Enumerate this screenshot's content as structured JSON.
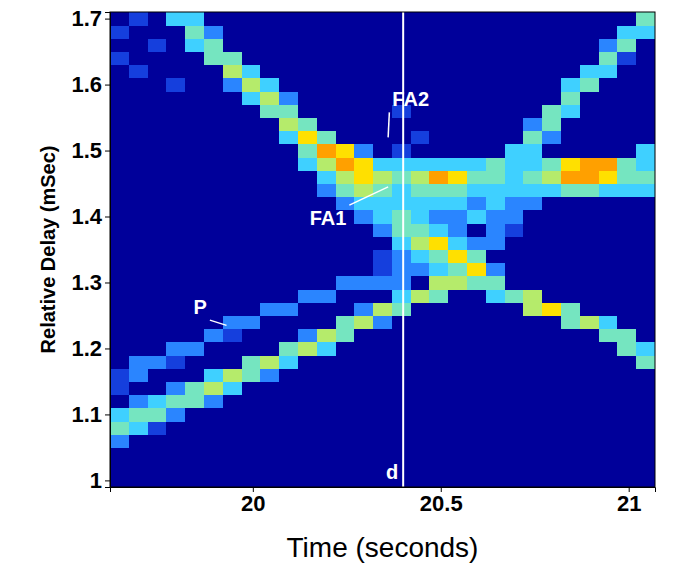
{
  "chart_data": {
    "type": "heatmap",
    "x_label": "Time (seconds)",
    "y_label": "Relative Delay (mSec)",
    "xlim": [
      19.62,
      21.07
    ],
    "ylim": [
      0.99,
      1.71
    ],
    "xticks": [
      20,
      20.5,
      21
    ],
    "yticks": [
      1,
      1.1,
      1.2,
      1.3,
      1.4,
      1.5,
      1.6,
      1.7
    ],
    "zlim": [
      0,
      9
    ],
    "x": [
      19.645,
      19.695,
      19.745,
      19.795,
      19.845,
      19.895,
      19.945,
      19.995,
      20.045,
      20.095,
      20.145,
      20.195,
      20.245,
      20.295,
      20.345,
      20.395,
      20.445,
      20.495,
      20.545,
      20.595,
      20.645,
      20.695,
      20.745,
      20.795,
      20.845,
      20.895,
      20.945,
      20.995,
      21.045
    ],
    "y": [
      1.0,
      1.02,
      1.04,
      1.06,
      1.08,
      1.1,
      1.12,
      1.14,
      1.16,
      1.18,
      1.2,
      1.22,
      1.24,
      1.26,
      1.28,
      1.3,
      1.32,
      1.34,
      1.36,
      1.38,
      1.4,
      1.42,
      1.44,
      1.46,
      1.48,
      1.5,
      1.52,
      1.54,
      1.56,
      1.58,
      1.6,
      1.62,
      1.64,
      1.66,
      1.68,
      1.7
    ],
    "z": [
      [
        0,
        0,
        0,
        0,
        0,
        0,
        0,
        0,
        0,
        0,
        0,
        0,
        0,
        0,
        0,
        0,
        0,
        0,
        0,
        0,
        0,
        0,
        0,
        0,
        0,
        0,
        0,
        0,
        0
      ],
      [
        0,
        0,
        0,
        0,
        0,
        0,
        0,
        0,
        0,
        0,
        0,
        0,
        0,
        0,
        0,
        0,
        0,
        0,
        0,
        0,
        0,
        0,
        0,
        0,
        0,
        0,
        0,
        0,
        0
      ],
      [
        0,
        0,
        0,
        0,
        0,
        0,
        0,
        0,
        0,
        0,
        0,
        0,
        0,
        0,
        0,
        0,
        0,
        0,
        0,
        0,
        0,
        0,
        0,
        0,
        0,
        0,
        0,
        0,
        0
      ],
      [
        2,
        0,
        0,
        0,
        0,
        0,
        0,
        0,
        0,
        0,
        0,
        0,
        0,
        0,
        0,
        0,
        0,
        0,
        0,
        0,
        0,
        0,
        0,
        0,
        0,
        0,
        0,
        0,
        0
      ],
      [
        4,
        3,
        1,
        0,
        0,
        0,
        0,
        0,
        0,
        0,
        0,
        0,
        0,
        0,
        0,
        0,
        0,
        0,
        0,
        0,
        0,
        0,
        0,
        0,
        0,
        0,
        0,
        0,
        0
      ],
      [
        3,
        4,
        4,
        2,
        0,
        0,
        0,
        0,
        0,
        0,
        0,
        0,
        0,
        0,
        0,
        0,
        0,
        0,
        0,
        0,
        0,
        0,
        0,
        0,
        0,
        0,
        0,
        0,
        0
      ],
      [
        0,
        2,
        3,
        4,
        4,
        2,
        0,
        0,
        0,
        0,
        0,
        0,
        0,
        0,
        0,
        0,
        0,
        0,
        0,
        0,
        0,
        0,
        0,
        0,
        0,
        0,
        0,
        0,
        0
      ],
      [
        1,
        0,
        0,
        2,
        4,
        5,
        3,
        0,
        0,
        0,
        0,
        0,
        0,
        0,
        0,
        0,
        0,
        0,
        0,
        0,
        0,
        0,
        0,
        0,
        0,
        0,
        0,
        0,
        0
      ],
      [
        1,
        2,
        0,
        0,
        0,
        3,
        5,
        4,
        2,
        0,
        0,
        0,
        0,
        0,
        0,
        0,
        0,
        0,
        0,
        0,
        0,
        0,
        0,
        0,
        0,
        0,
        0,
        0,
        0
      ],
      [
        0,
        2,
        2,
        1,
        0,
        0,
        0,
        4,
        5,
        3,
        0,
        0,
        0,
        0,
        0,
        0,
        0,
        0,
        0,
        0,
        0,
        0,
        0,
        0,
        0,
        0,
        0,
        0,
        4
      ],
      [
        0,
        0,
        0,
        2,
        2,
        0,
        0,
        0,
        0,
        4,
        5,
        3,
        0,
        0,
        0,
        0,
        0,
        0,
        0,
        0,
        0,
        0,
        0,
        0,
        0,
        0,
        0,
        4,
        3
      ],
      [
        0,
        0,
        0,
        0,
        0,
        2,
        1,
        0,
        0,
        0,
        2,
        5,
        4,
        0,
        0,
        0,
        0,
        0,
        0,
        0,
        0,
        0,
        0,
        0,
        0,
        0,
        4,
        4,
        0
      ],
      [
        0,
        0,
        0,
        0,
        0,
        0,
        2,
        2,
        0,
        0,
        0,
        0,
        4,
        5,
        2,
        0,
        0,
        0,
        0,
        0,
        0,
        0,
        0,
        0,
        4,
        5,
        3,
        0,
        0
      ],
      [
        0,
        0,
        0,
        0,
        0,
        0,
        0,
        0,
        2,
        2,
        0,
        0,
        0,
        2,
        5,
        4,
        0,
        0,
        0,
        0,
        0,
        0,
        5,
        6,
        4,
        0,
        0,
        0,
        0
      ],
      [
        0,
        0,
        0,
        0,
        0,
        0,
        0,
        0,
        0,
        0,
        2,
        2,
        0,
        0,
        0,
        3,
        5,
        4,
        0,
        0,
        3,
        4,
        5,
        0,
        0,
        0,
        0,
        0,
        0
      ],
      [
        0,
        0,
        0,
        0,
        0,
        0,
        0,
        0,
        0,
        0,
        0,
        0,
        2,
        2,
        2,
        2,
        0,
        5,
        5,
        4,
        4,
        0,
        0,
        0,
        0,
        0,
        0,
        0,
        0
      ],
      [
        0,
        0,
        0,
        0,
        0,
        0,
        0,
        0,
        0,
        0,
        0,
        0,
        0,
        0,
        1,
        2,
        2,
        3,
        4,
        6,
        2,
        0,
        0,
        0,
        0,
        0,
        0,
        0,
        0
      ],
      [
        0,
        0,
        0,
        0,
        0,
        0,
        0,
        0,
        0,
        0,
        0,
        0,
        0,
        0,
        1,
        2,
        3,
        4,
        6,
        4,
        0,
        0,
        0,
        0,
        0,
        0,
        0,
        0,
        0
      ],
      [
        0,
        0,
        0,
        0,
        0,
        0,
        0,
        0,
        0,
        0,
        0,
        0,
        0,
        0,
        0,
        3,
        5,
        6,
        3,
        2,
        2,
        0,
        0,
        0,
        0,
        0,
        0,
        0,
        0
      ],
      [
        0,
        0,
        0,
        0,
        0,
        0,
        0,
        0,
        0,
        0,
        0,
        0,
        0,
        0,
        2,
        4,
        4,
        3,
        2,
        0,
        2,
        1,
        0,
        0,
        0,
        0,
        0,
        0,
        0
      ],
      [
        0,
        0,
        0,
        0,
        0,
        0,
        0,
        0,
        0,
        0,
        0,
        0,
        0,
        2,
        3,
        4,
        3,
        2,
        2,
        3,
        2,
        2,
        0,
        0,
        0,
        0,
        0,
        0,
        0
      ],
      [
        0,
        0,
        0,
        0,
        0,
        0,
        0,
        0,
        0,
        0,
        0,
        0,
        2,
        3,
        3,
        3,
        3,
        3,
        3,
        2,
        3,
        2,
        2,
        0,
        0,
        0,
        0,
        0,
        0
      ],
      [
        0,
        0,
        0,
        0,
        0,
        0,
        0,
        0,
        0,
        0,
        0,
        2,
        4,
        5,
        4,
        3,
        4,
        4,
        4,
        3,
        3,
        3,
        3,
        3,
        4,
        4,
        3,
        3,
        3
      ],
      [
        0,
        0,
        0,
        0,
        0,
        0,
        0,
        0,
        0,
        0,
        0,
        3,
        5,
        6,
        5,
        4,
        5,
        7,
        6,
        4,
        4,
        3,
        4,
        5,
        7,
        7,
        6,
        4,
        4
      ],
      [
        0,
        0,
        0,
        0,
        0,
        0,
        0,
        0,
        0,
        0,
        3,
        5,
        7,
        6,
        3,
        3,
        3,
        3,
        3,
        3,
        4,
        3,
        3,
        4,
        6,
        7,
        7,
        4,
        3
      ],
      [
        0,
        0,
        0,
        0,
        0,
        0,
        0,
        0,
        0,
        0,
        4,
        7,
        6,
        2,
        0,
        1,
        0,
        0,
        0,
        0,
        0,
        3,
        3,
        0,
        0,
        0,
        0,
        0,
        3
      ],
      [
        0,
        0,
        0,
        0,
        0,
        0,
        0,
        0,
        0,
        3,
        6,
        4,
        0,
        0,
        0,
        0,
        1,
        0,
        0,
        0,
        0,
        0,
        4,
        2,
        0,
        0,
        0,
        0,
        0
      ],
      [
        0,
        0,
        0,
        0,
        0,
        0,
        0,
        0,
        0,
        5,
        4,
        0,
        0,
        0,
        0,
        0,
        0,
        0,
        0,
        0,
        0,
        0,
        2,
        4,
        0,
        0,
        0,
        0,
        0
      ],
      [
        0,
        0,
        0,
        0,
        0,
        0,
        0,
        0,
        4,
        4,
        0,
        0,
        0,
        0,
        0,
        1,
        0,
        0,
        0,
        0,
        0,
        0,
        0,
        4,
        3,
        0,
        0,
        0,
        0
      ],
      [
        0,
        0,
        0,
        0,
        0,
        0,
        0,
        3,
        5,
        2,
        0,
        0,
        0,
        0,
        0,
        0,
        0,
        0,
        0,
        0,
        0,
        0,
        0,
        0,
        4,
        0,
        0,
        0,
        0
      ],
      [
        0,
        0,
        0,
        1,
        0,
        0,
        2,
        5,
        3,
        0,
        0,
        0,
        0,
        0,
        0,
        0,
        0,
        0,
        0,
        0,
        0,
        0,
        0,
        0,
        3,
        4,
        0,
        0,
        0
      ],
      [
        0,
        1,
        0,
        0,
        0,
        0,
        5,
        3,
        0,
        0,
        0,
        0,
        0,
        0,
        0,
        0,
        0,
        0,
        0,
        0,
        0,
        0,
        0,
        0,
        0,
        3,
        3,
        0,
        0
      ],
      [
        1,
        0,
        0,
        0,
        0,
        4,
        4,
        0,
        0,
        0,
        0,
        0,
        0,
        0,
        0,
        0,
        0,
        0,
        0,
        0,
        0,
        0,
        0,
        0,
        0,
        0,
        4,
        1,
        0
      ],
      [
        0,
        0,
        1,
        0,
        3,
        4,
        0,
        0,
        0,
        0,
        0,
        0,
        0,
        0,
        0,
        0,
        0,
        0,
        0,
        0,
        0,
        0,
        0,
        0,
        0,
        0,
        2,
        4,
        0
      ],
      [
        1,
        0,
        0,
        0,
        4,
        2,
        0,
        0,
        0,
        0,
        0,
        0,
        0,
        0,
        0,
        0,
        0,
        0,
        0,
        0,
        0,
        0,
        0,
        0,
        0,
        0,
        0,
        3,
        3
      ],
      [
        0,
        1,
        0,
        3,
        3,
        0,
        0,
        0,
        0,
        0,
        0,
        0,
        0,
        0,
        0,
        0,
        0,
        0,
        0,
        0,
        0,
        0,
        0,
        0,
        0,
        0,
        0,
        0,
        4
      ]
    ],
    "vline": {
      "x": 20.4,
      "label": "d",
      "color": "#ffffff"
    },
    "annotations": [
      {
        "text": "FA2",
        "x": 20.42,
        "y": 1.575,
        "target": [
          20.36,
          1.52
        ]
      },
      {
        "text": "FA1",
        "x": 20.2,
        "y": 1.395,
        "target": [
          20.36,
          1.445
        ]
      },
      {
        "text": "P",
        "x": 19.86,
        "y": 1.26,
        "target": [
          19.93,
          1.235
        ]
      }
    ]
  }
}
